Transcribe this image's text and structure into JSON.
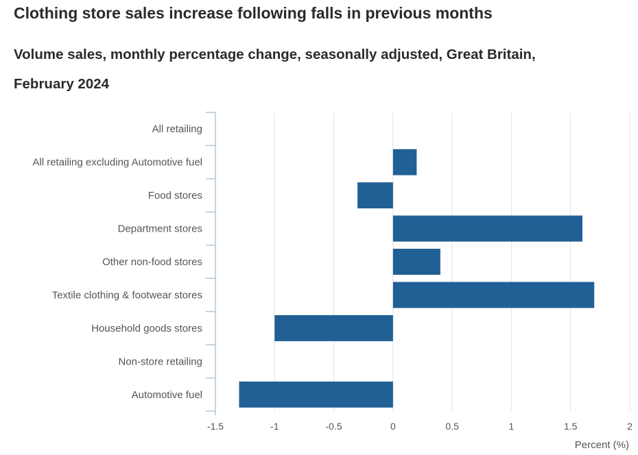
{
  "title": "Clothing store sales increase following falls in previous months",
  "subtitle": "Volume sales, monthly percentage change, seasonally adjusted, Great Britain, February 2024",
  "colors": {
    "bar": "#206095",
    "grid": "#e2e2e2",
    "axis": "#b3c5d6",
    "text": "#555555"
  },
  "chart_data": {
    "type": "bar",
    "orientation": "horizontal",
    "categories": [
      "All retailing",
      "All retailing excluding Automotive fuel",
      "Food stores",
      "Department stores",
      "Other non-food stores",
      "Textile clothing & footwear stores",
      "Household goods stores",
      "Non-store retailing",
      "Automotive fuel"
    ],
    "values": [
      0.0,
      0.2,
      -0.3,
      1.6,
      0.4,
      1.7,
      -1.0,
      0.0,
      -1.3
    ],
    "xlim": [
      -1.5,
      2
    ],
    "xticks": [
      -1.5,
      -1,
      -0.5,
      0,
      0.5,
      1,
      1.5,
      2
    ],
    "xtick_labels": [
      "-1.5",
      "-1",
      "-0.5",
      "0",
      "0.5",
      "1",
      "1.5",
      "2"
    ],
    "xlabel": "Percent (%)",
    "ylabel": "",
    "grid": true,
    "legend": "none"
  }
}
